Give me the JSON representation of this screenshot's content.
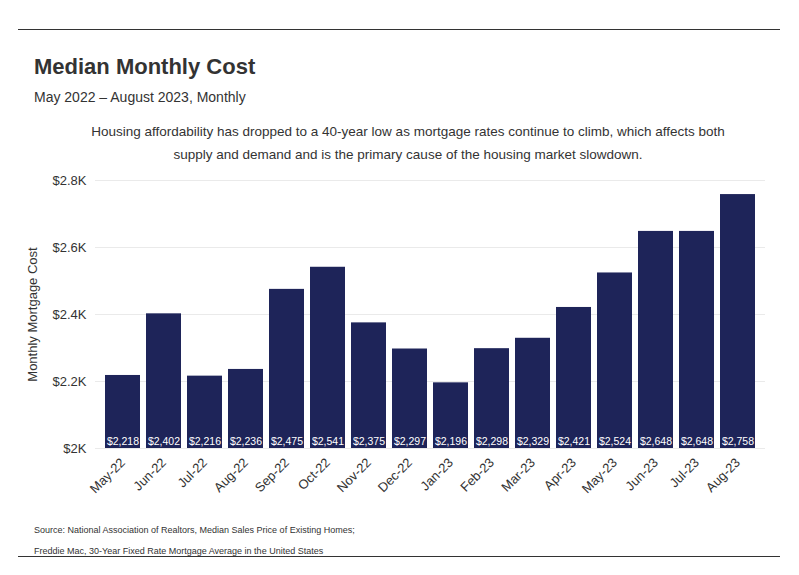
{
  "chart_data": {
    "type": "bar",
    "title": "Median Monthly Cost",
    "subtitle": "May 2022 – August 2023, Monthly",
    "caption": "Housing affordability has dropped to a 40-year low as mortgage rates continue to climb, which affects both supply and demand and is the primary cause of the housing market slowdown.",
    "ylabel": "Monthly Mortgage Cost",
    "source": [
      "Source: National Association of Realtors, Median Sales Price of Existing Homes;",
      "Freddie Mac, 30-Year Fixed Rate Mortgage Average in the United States"
    ],
    "categories": [
      "May-22",
      "Jun-22",
      "Jul-22",
      "Aug-22",
      "Sep-22",
      "Oct-22",
      "Nov-22",
      "Dec-22",
      "Jan-23",
      "Feb-23",
      "Mar-23",
      "Apr-23",
      "May-23",
      "Jun-23",
      "Jul-23",
      "Aug-23"
    ],
    "values": [
      2218,
      2402,
      2216,
      2236,
      2475,
      2541,
      2375,
      2297,
      2196,
      2298,
      2329,
      2421,
      2524,
      2648,
      2648,
      2758
    ],
    "value_labels": [
      "$2,218",
      "$2,402",
      "$2,216",
      "$2,236",
      "$2,475",
      "$2,541",
      "$2,375",
      "$2,297",
      "$2,196",
      "$2,298",
      "$2,329",
      "$2,421",
      "$2,524",
      "$2,648",
      "$2,648",
      "$2,758"
    ],
    "color": "#1e2459",
    "ylim": [
      2000,
      2800
    ],
    "yticks": [
      {
        "value": 2000,
        "label": "$2K"
      },
      {
        "value": 2200,
        "label": "$2.2K"
      },
      {
        "value": 2400,
        "label": "$2.4K"
      },
      {
        "value": 2600,
        "label": "$2.6K"
      },
      {
        "value": 2800,
        "label": "$2.8K"
      }
    ],
    "grid": true,
    "data_labels": true
  }
}
